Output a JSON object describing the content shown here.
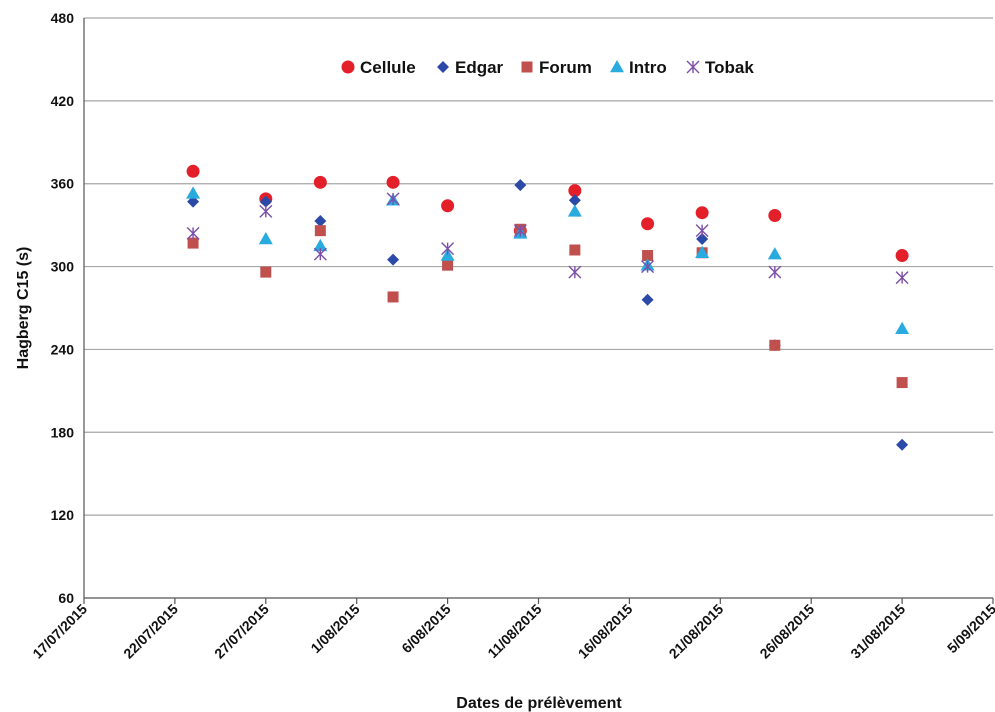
{
  "chart_data": {
    "type": "scatter",
    "title": "",
    "xlabel": "Dates de prélèvement",
    "ylabel": "Hagberg C15 (s)",
    "ylim": [
      60,
      480
    ],
    "yticks": [
      60,
      120,
      180,
      240,
      300,
      360,
      420,
      480
    ],
    "xlim": [
      "17/07/2015",
      "5/09/2015"
    ],
    "xticks": [
      "17/07/2015",
      "22/07/2015",
      "27/07/2015",
      "1/08/2015",
      "6/08/2015",
      "11/08/2015",
      "16/08/2015",
      "21/08/2015",
      "26/08/2015",
      "31/08/2015",
      "5/09/2015"
    ],
    "grid": "horizontal",
    "legend_position": "top-center",
    "series": [
      {
        "name": "Cellule",
        "marker": "circle",
        "color": "#e3202a",
        "points": [
          {
            "x": "23/07/2015",
            "y": 369
          },
          {
            "x": "27/07/2015",
            "y": 349
          },
          {
            "x": "30/07/2015",
            "y": 361
          },
          {
            "x": "3/08/2015",
            "y": 361
          },
          {
            "x": "6/08/2015",
            "y": 344
          },
          {
            "x": "10/08/2015",
            "y": 326
          },
          {
            "x": "13/08/2015",
            "y": 355
          },
          {
            "x": "17/08/2015",
            "y": 331
          },
          {
            "x": "20/08/2015",
            "y": 339
          },
          {
            "x": "24/08/2015",
            "y": 337
          },
          {
            "x": "31/08/2015",
            "y": 308
          }
        ]
      },
      {
        "name": "Edgar",
        "marker": "diamond",
        "color": "#2b4aa8",
        "points": [
          {
            "x": "23/07/2015",
            "y": 347
          },
          {
            "x": "27/07/2015",
            "y": 347
          },
          {
            "x": "30/07/2015",
            "y": 333
          },
          {
            "x": "3/08/2015",
            "y": 305
          },
          {
            "x": "6/08/2015",
            "y": 305
          },
          {
            "x": "10/08/2015",
            "y": 359
          },
          {
            "x": "13/08/2015",
            "y": 348
          },
          {
            "x": "17/08/2015",
            "y": 276
          },
          {
            "x": "20/08/2015",
            "y": 320
          },
          {
            "x": "24/08/2015",
            "y": 243
          },
          {
            "x": "31/08/2015",
            "y": 171
          }
        ]
      },
      {
        "name": "Forum",
        "marker": "square",
        "color": "#c0504d",
        "points": [
          {
            "x": "23/07/2015",
            "y": 317
          },
          {
            "x": "27/07/2015",
            "y": 296
          },
          {
            "x": "30/07/2015",
            "y": 326
          },
          {
            "x": "3/08/2015",
            "y": 278
          },
          {
            "x": "6/08/2015",
            "y": 301
          },
          {
            "x": "10/08/2015",
            "y": 327
          },
          {
            "x": "13/08/2015",
            "y": 312
          },
          {
            "x": "17/08/2015",
            "y": 308
          },
          {
            "x": "20/08/2015",
            "y": 310
          },
          {
            "x": "24/08/2015",
            "y": 243
          },
          {
            "x": "31/08/2015",
            "y": 216
          }
        ]
      },
      {
        "name": "Intro",
        "marker": "triangle",
        "color": "#2aabe0",
        "points": [
          {
            "x": "23/07/2015",
            "y": 353
          },
          {
            "x": "27/07/2015",
            "y": 320
          },
          {
            "x": "30/07/2015",
            "y": 315
          },
          {
            "x": "3/08/2015",
            "y": 348
          },
          {
            "x": "6/08/2015",
            "y": 308
          },
          {
            "x": "10/08/2015",
            "y": 324
          },
          {
            "x": "13/08/2015",
            "y": 340
          },
          {
            "x": "17/08/2015",
            "y": 301
          },
          {
            "x": "20/08/2015",
            "y": 310
          },
          {
            "x": "24/08/2015",
            "y": 309
          },
          {
            "x": "31/08/2015",
            "y": 255
          }
        ]
      },
      {
        "name": "Tobak",
        "marker": "star",
        "color": "#7b4fa8",
        "points": [
          {
            "x": "23/07/2015",
            "y": 324
          },
          {
            "x": "27/07/2015",
            "y": 340
          },
          {
            "x": "30/07/2015",
            "y": 309
          },
          {
            "x": "3/08/2015",
            "y": 349
          },
          {
            "x": "6/08/2015",
            "y": 313
          },
          {
            "x": "10/08/2015",
            "y": 326
          },
          {
            "x": "13/08/2015",
            "y": 296
          },
          {
            "x": "17/08/2015",
            "y": 300
          },
          {
            "x": "20/08/2015",
            "y": 326
          },
          {
            "x": "24/08/2015",
            "y": 296
          },
          {
            "x": "31/08/2015",
            "y": 292
          }
        ]
      }
    ]
  }
}
